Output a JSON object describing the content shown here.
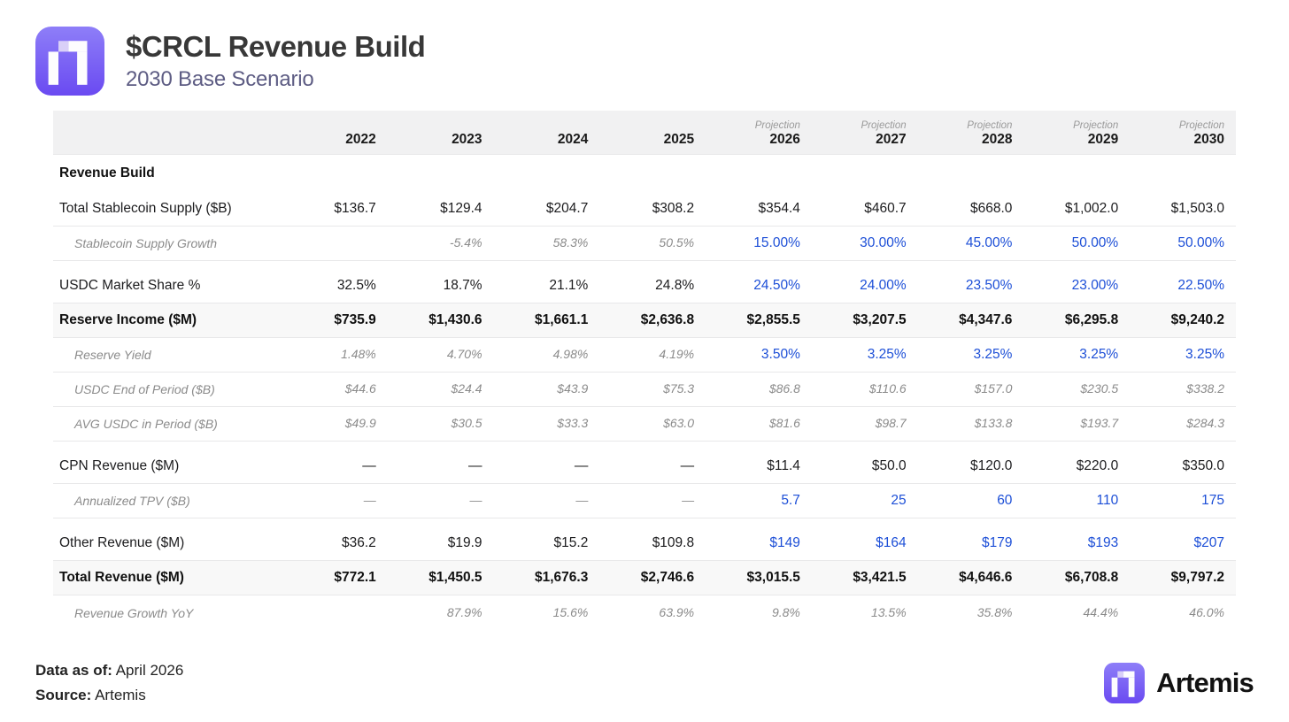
{
  "page": {
    "title": "$CRCL Revenue Build",
    "subtitle": "2030 Base Scenario"
  },
  "table_header": {
    "projection_label": "Projection",
    "columns": [
      {
        "year": "2022",
        "projection": false
      },
      {
        "year": "2023",
        "projection": false
      },
      {
        "year": "2024",
        "projection": false
      },
      {
        "year": "2025",
        "projection": false
      },
      {
        "year": "2026",
        "projection": true
      },
      {
        "year": "2027",
        "projection": true
      },
      {
        "year": "2028",
        "projection": true
      },
      {
        "year": "2029",
        "projection": true
      },
      {
        "year": "2030",
        "projection": true
      }
    ]
  },
  "chart_data": {
    "type": "table",
    "title": "$CRCL Revenue Build",
    "subtitle": "2030 Base Scenario",
    "section_label": "Revenue Build",
    "columns": [
      "2022",
      "2023",
      "2024",
      "2025",
      "2026",
      "2027",
      "2028",
      "2029",
      "2030"
    ],
    "projection_columns": [
      "2026",
      "2027",
      "2028",
      "2029",
      "2030"
    ],
    "rows": [
      {
        "label": "Total Stablecoin Supply ($B)",
        "indent": false,
        "bold": false,
        "shaded": false,
        "values": [
          "$136.7",
          "$129.4",
          "$204.7",
          "$308.2",
          "$354.4",
          "$460.7",
          "$668.0",
          "$1,002.0",
          "$1,503.0"
        ],
        "styles": [
          "dark",
          "dark",
          "dark",
          "dark",
          "dark",
          "dark",
          "dark",
          "dark",
          "dark"
        ]
      },
      {
        "label": "Stablecoin Supply Growth",
        "indent": true,
        "bold": false,
        "shaded": false,
        "gap_after": true,
        "values": [
          "",
          "-5.4%",
          "58.3%",
          "50.5%",
          "15.00%",
          "30.00%",
          "45.00%",
          "50.00%",
          "50.00%"
        ],
        "styles": [
          "muted",
          "muted",
          "muted",
          "muted",
          "blue",
          "blue",
          "blue",
          "blue",
          "blue"
        ]
      },
      {
        "label": "USDC Market Share %",
        "indent": false,
        "bold": false,
        "shaded": false,
        "values": [
          "32.5%",
          "18.7%",
          "21.1%",
          "24.8%",
          "24.50%",
          "24.00%",
          "23.50%",
          "23.00%",
          "22.50%"
        ],
        "styles": [
          "dark",
          "dark",
          "dark",
          "dark",
          "blue",
          "blue",
          "blue",
          "blue",
          "blue"
        ]
      },
      {
        "label": "Reserve Income ($M)",
        "indent": false,
        "bold": true,
        "shaded": true,
        "values": [
          "$735.9",
          "$1,430.6",
          "$1,661.1",
          "$2,636.8",
          "$2,855.5",
          "$3,207.5",
          "$4,347.6",
          "$6,295.8",
          "$9,240.2"
        ],
        "styles": [
          "bold",
          "bold",
          "bold",
          "bold",
          "bold",
          "bold",
          "bold",
          "bold",
          "bold"
        ]
      },
      {
        "label": "Reserve Yield",
        "indent": true,
        "bold": false,
        "shaded": false,
        "values": [
          "1.48%",
          "4.70%",
          "4.98%",
          "4.19%",
          "3.50%",
          "3.25%",
          "3.25%",
          "3.25%",
          "3.25%"
        ],
        "styles": [
          "muted",
          "muted",
          "muted",
          "muted",
          "blue",
          "blue",
          "blue",
          "blue",
          "blue"
        ]
      },
      {
        "label": "USDC End of Period ($B)",
        "indent": true,
        "bold": false,
        "shaded": false,
        "values": [
          "$44.6",
          "$24.4",
          "$43.9",
          "$75.3",
          "$86.8",
          "$110.6",
          "$157.0",
          "$230.5",
          "$338.2"
        ],
        "styles": [
          "muted",
          "muted",
          "muted",
          "muted",
          "muted",
          "muted",
          "muted",
          "muted",
          "muted"
        ]
      },
      {
        "label": "AVG USDC in Period ($B)",
        "indent": true,
        "bold": false,
        "shaded": false,
        "gap_after": true,
        "values": [
          "$49.9",
          "$30.5",
          "$33.3",
          "$63.0",
          "$81.6",
          "$98.7",
          "$133.8",
          "$193.7",
          "$284.3"
        ],
        "styles": [
          "muted",
          "muted",
          "muted",
          "muted",
          "muted",
          "muted",
          "muted",
          "muted",
          "muted"
        ]
      },
      {
        "label": "CPN Revenue ($M)",
        "indent": false,
        "bold": false,
        "shaded": false,
        "values": [
          "—",
          "—",
          "—",
          "—",
          "$11.4",
          "$50.0",
          "$120.0",
          "$220.0",
          "$350.0"
        ],
        "styles": [
          "dark",
          "dark",
          "dark",
          "dark",
          "dark",
          "dark",
          "dark",
          "dark",
          "dark"
        ]
      },
      {
        "label": "Annualized TPV ($B)",
        "indent": true,
        "bold": false,
        "shaded": false,
        "gap_after": true,
        "values": [
          "—",
          "—",
          "—",
          "—",
          "5.7",
          "25",
          "60",
          "110",
          "175"
        ],
        "styles": [
          "muted",
          "muted",
          "muted",
          "muted",
          "blue",
          "blue",
          "blue",
          "blue",
          "blue"
        ]
      },
      {
        "label": "Other Revenue ($M)",
        "indent": false,
        "bold": false,
        "shaded": false,
        "values": [
          "$36.2",
          "$19.9",
          "$15.2",
          "$109.8",
          "$149",
          "$164",
          "$179",
          "$193",
          "$207"
        ],
        "styles": [
          "dark",
          "dark",
          "dark",
          "dark",
          "blue",
          "blue",
          "blue",
          "blue",
          "blue"
        ]
      },
      {
        "label": "Total Revenue ($M)",
        "indent": false,
        "bold": true,
        "shaded": true,
        "values": [
          "$772.1",
          "$1,450.5",
          "$1,676.3",
          "$2,746.6",
          "$3,015.5",
          "$3,421.5",
          "$4,646.6",
          "$6,708.8",
          "$9,797.2"
        ],
        "styles": [
          "bold",
          "bold",
          "bold",
          "bold",
          "bold",
          "bold",
          "bold",
          "bold",
          "bold"
        ]
      },
      {
        "label": "Revenue Growth YoY",
        "indent": true,
        "bold": false,
        "shaded": false,
        "last": true,
        "values": [
          "",
          "87.9%",
          "15.6%",
          "63.9%",
          "9.8%",
          "13.5%",
          "35.8%",
          "44.4%",
          "46.0%"
        ],
        "styles": [
          "muted",
          "muted",
          "muted",
          "muted",
          "muted",
          "muted",
          "muted",
          "muted",
          "muted"
        ]
      }
    ]
  },
  "footer": {
    "data_as_of_label": "Data as of:",
    "data_as_of_value": "April 2026",
    "source_label": "Source:",
    "source_value": "Artemis",
    "brand_wordmark": "Artemis"
  },
  "colors": {
    "projection_blue": "#1d4fd7",
    "muted_gray": "#8b8b8b",
    "dark_text": "#1c1c1e",
    "header_row_bg": "#f1f1f2",
    "shaded_row_bg": "#f8f8f8",
    "row_border": "#e8e8e9",
    "subtitle_color": "#5e5d84",
    "brand_purple_top": "#8e7ef8",
    "brand_purple_bottom": "#6a4af1"
  }
}
